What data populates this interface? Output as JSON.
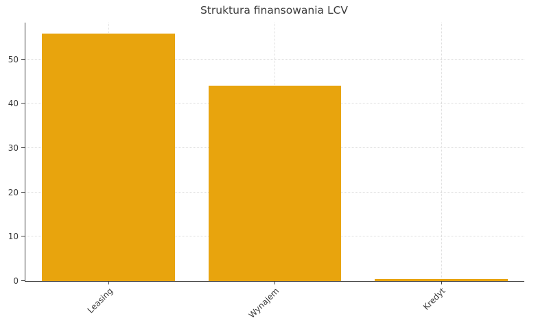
{
  "chart_data": {
    "type": "bar",
    "title": "Struktura finansowania LCV",
    "categories": [
      "Leasing",
      "Wynajem",
      "Kredyt"
    ],
    "values": [
      55.8,
      44,
      0.5
    ],
    "xlabel": "",
    "ylabel": "",
    "ylim": [
      0,
      58.3
    ],
    "yticks": [
      0,
      10,
      20,
      30,
      40,
      50
    ],
    "grid": {
      "x": true,
      "y": true,
      "style": "dotted"
    },
    "legend": "none",
    "xtick_rotation_deg": 45,
    "colors": {
      "bar": "#e8a40d",
      "grid": "#dcdcdc",
      "spine": "#3b3b3b",
      "text": "#3a3a3a",
      "background": "#ffffff"
    }
  }
}
